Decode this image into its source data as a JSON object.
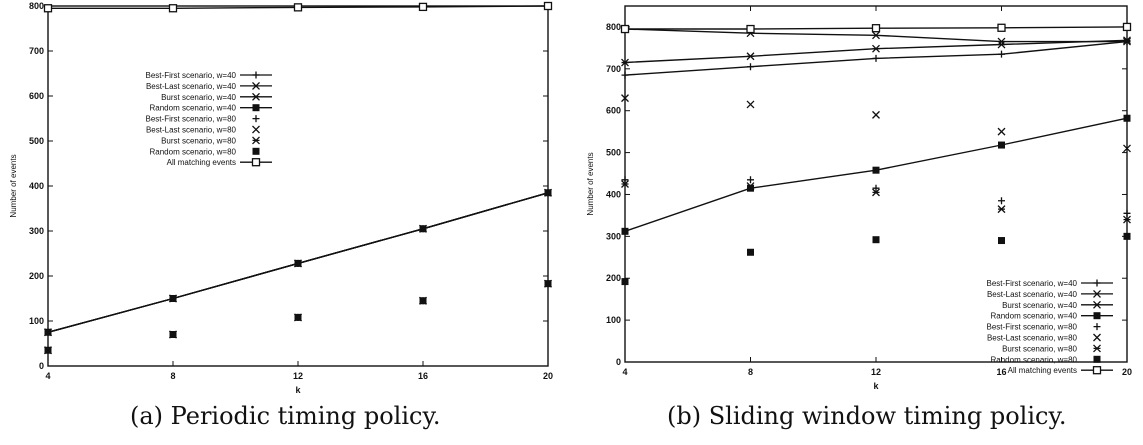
{
  "chart_data": [
    {
      "type": "line",
      "caption": "(a) Periodic timing policy.",
      "xlabel": "k",
      "ylabel": "Number of events",
      "xlim": [
        4,
        20
      ],
      "ylim": [
        0,
        800
      ],
      "xticks": [
        4,
        8,
        12,
        16,
        20
      ],
      "yticks": [
        0,
        100,
        200,
        300,
        400,
        500,
        600,
        700,
        800
      ],
      "x": [
        4,
        8,
        12,
        16,
        20
      ],
      "legend_position": "top-left",
      "series": [
        {
          "name": "Best-First scenario, w=40",
          "marker": "plus",
          "line": true,
          "values": [
            75,
            150,
            228,
            305,
            385
          ]
        },
        {
          "name": "Best-Last scenario, w=40",
          "marker": "x",
          "line": true,
          "values": [
            75,
            150,
            228,
            305,
            385
          ]
        },
        {
          "name": "Burst scenario, w=40",
          "marker": "star",
          "line": true,
          "values": [
            75,
            150,
            228,
            305,
            385
          ]
        },
        {
          "name": "Random scenario, w=40",
          "marker": "filled-square",
          "line": true,
          "values": [
            75,
            150,
            228,
            305,
            385
          ]
        },
        {
          "name": "Best-First scenario, w=80",
          "marker": "plus",
          "line": false,
          "values": [
            35,
            70,
            108,
            145,
            183
          ]
        },
        {
          "name": "Best-Last scenario, w=80",
          "marker": "x",
          "line": false,
          "values": [
            35,
            70,
            108,
            145,
            183
          ]
        },
        {
          "name": "Burst scenario, w=80",
          "marker": "star",
          "line": false,
          "values": [
            35,
            70,
            108,
            145,
            183
          ]
        },
        {
          "name": "Random scenario, w=80",
          "marker": "filled-square",
          "line": false,
          "values": [
            35,
            70,
            108,
            145,
            183
          ]
        },
        {
          "name": "All matching events",
          "marker": "open-square",
          "line": true,
          "values": [
            795,
            795,
            797,
            798,
            800
          ]
        }
      ],
      "colors": {
        "ink": "#111111"
      }
    },
    {
      "type": "line",
      "caption": "(b) Sliding window timing policy.",
      "xlabel": "k",
      "ylabel": "Number of events",
      "xlim": [
        4,
        20
      ],
      "ylim": [
        0,
        850
      ],
      "xticks": [
        4,
        8,
        12,
        16,
        20
      ],
      "yticks": [
        0,
        100,
        200,
        300,
        400,
        500,
        600,
        700,
        800
      ],
      "x": [
        4,
        8,
        12,
        16,
        20
      ],
      "legend_position": "bottom-right",
      "series": [
        {
          "name": "Best-First scenario, w=40",
          "marker": "plus",
          "line": true,
          "values": [
            685,
            705,
            725,
            735,
            765
          ]
        },
        {
          "name": "Best-Last scenario, w=40",
          "marker": "x",
          "line": true,
          "values": [
            795,
            785,
            780,
            765,
            765
          ]
        },
        {
          "name": "Burst scenario, w=40",
          "marker": "star",
          "line": true,
          "values": [
            715,
            730,
            748,
            758,
            768
          ]
        },
        {
          "name": "Random scenario, w=40",
          "marker": "filled-square",
          "line": true,
          "values": [
            312,
            415,
            458,
            518,
            582
          ]
        },
        {
          "name": "Best-First scenario, w=80",
          "marker": "plus",
          "line": false,
          "values": [
            435,
            435,
            415,
            385,
            355
          ]
        },
        {
          "name": "Best-Last scenario, w=80",
          "marker": "x",
          "line": false,
          "values": [
            630,
            615,
            590,
            550,
            510
          ]
        },
        {
          "name": "Burst scenario, w=80",
          "marker": "star",
          "line": false,
          "values": [
            425,
            420,
            405,
            365,
            340
          ]
        },
        {
          "name": "Random scenario, w=80",
          "marker": "filled-square",
          "line": false,
          "values": [
            192,
            262,
            292,
            290,
            300
          ]
        },
        {
          "name": "All matching events",
          "marker": "open-square",
          "line": true,
          "values": [
            795,
            795,
            797,
            798,
            800
          ]
        }
      ],
      "colors": {
        "ink": "#111111"
      }
    }
  ]
}
